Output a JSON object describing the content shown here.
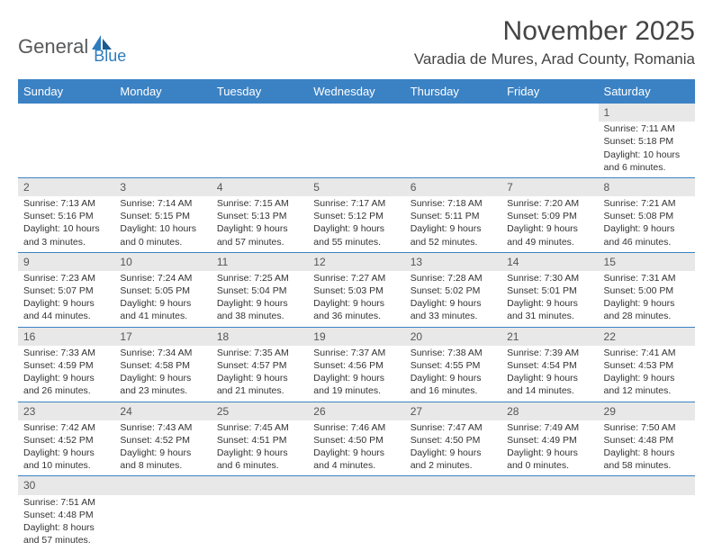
{
  "brand": {
    "text1": "General",
    "text2": "Blue"
  },
  "title": "November 2025",
  "location": "Varadia de Mures, Arad County, Romania",
  "colors": {
    "header_bg": "#3b82c4",
    "header_text": "#ffffff",
    "daynum_bg": "#e8e8e8",
    "border": "#3b82c4",
    "text": "#333333",
    "brand_gray": "#58595b",
    "brand_blue": "#2e7bbd"
  },
  "day_labels": [
    "Sunday",
    "Monday",
    "Tuesday",
    "Wednesday",
    "Thursday",
    "Friday",
    "Saturday"
  ],
  "weeks": [
    [
      null,
      null,
      null,
      null,
      null,
      null,
      {
        "n": "1",
        "sr": "Sunrise: 7:11 AM",
        "ss": "Sunset: 5:18 PM",
        "d1": "Daylight: 10 hours",
        "d2": "and 6 minutes."
      }
    ],
    [
      {
        "n": "2",
        "sr": "Sunrise: 7:13 AM",
        "ss": "Sunset: 5:16 PM",
        "d1": "Daylight: 10 hours",
        "d2": "and 3 minutes."
      },
      {
        "n": "3",
        "sr": "Sunrise: 7:14 AM",
        "ss": "Sunset: 5:15 PM",
        "d1": "Daylight: 10 hours",
        "d2": "and 0 minutes."
      },
      {
        "n": "4",
        "sr": "Sunrise: 7:15 AM",
        "ss": "Sunset: 5:13 PM",
        "d1": "Daylight: 9 hours",
        "d2": "and 57 minutes."
      },
      {
        "n": "5",
        "sr": "Sunrise: 7:17 AM",
        "ss": "Sunset: 5:12 PM",
        "d1": "Daylight: 9 hours",
        "d2": "and 55 minutes."
      },
      {
        "n": "6",
        "sr": "Sunrise: 7:18 AM",
        "ss": "Sunset: 5:11 PM",
        "d1": "Daylight: 9 hours",
        "d2": "and 52 minutes."
      },
      {
        "n": "7",
        "sr": "Sunrise: 7:20 AM",
        "ss": "Sunset: 5:09 PM",
        "d1": "Daylight: 9 hours",
        "d2": "and 49 minutes."
      },
      {
        "n": "8",
        "sr": "Sunrise: 7:21 AM",
        "ss": "Sunset: 5:08 PM",
        "d1": "Daylight: 9 hours",
        "d2": "and 46 minutes."
      }
    ],
    [
      {
        "n": "9",
        "sr": "Sunrise: 7:23 AM",
        "ss": "Sunset: 5:07 PM",
        "d1": "Daylight: 9 hours",
        "d2": "and 44 minutes."
      },
      {
        "n": "10",
        "sr": "Sunrise: 7:24 AM",
        "ss": "Sunset: 5:05 PM",
        "d1": "Daylight: 9 hours",
        "d2": "and 41 minutes."
      },
      {
        "n": "11",
        "sr": "Sunrise: 7:25 AM",
        "ss": "Sunset: 5:04 PM",
        "d1": "Daylight: 9 hours",
        "d2": "and 38 minutes."
      },
      {
        "n": "12",
        "sr": "Sunrise: 7:27 AM",
        "ss": "Sunset: 5:03 PM",
        "d1": "Daylight: 9 hours",
        "d2": "and 36 minutes."
      },
      {
        "n": "13",
        "sr": "Sunrise: 7:28 AM",
        "ss": "Sunset: 5:02 PM",
        "d1": "Daylight: 9 hours",
        "d2": "and 33 minutes."
      },
      {
        "n": "14",
        "sr": "Sunrise: 7:30 AM",
        "ss": "Sunset: 5:01 PM",
        "d1": "Daylight: 9 hours",
        "d2": "and 31 minutes."
      },
      {
        "n": "15",
        "sr": "Sunrise: 7:31 AM",
        "ss": "Sunset: 5:00 PM",
        "d1": "Daylight: 9 hours",
        "d2": "and 28 minutes."
      }
    ],
    [
      {
        "n": "16",
        "sr": "Sunrise: 7:33 AM",
        "ss": "Sunset: 4:59 PM",
        "d1": "Daylight: 9 hours",
        "d2": "and 26 minutes."
      },
      {
        "n": "17",
        "sr": "Sunrise: 7:34 AM",
        "ss": "Sunset: 4:58 PM",
        "d1": "Daylight: 9 hours",
        "d2": "and 23 minutes."
      },
      {
        "n": "18",
        "sr": "Sunrise: 7:35 AM",
        "ss": "Sunset: 4:57 PM",
        "d1": "Daylight: 9 hours",
        "d2": "and 21 minutes."
      },
      {
        "n": "19",
        "sr": "Sunrise: 7:37 AM",
        "ss": "Sunset: 4:56 PM",
        "d1": "Daylight: 9 hours",
        "d2": "and 19 minutes."
      },
      {
        "n": "20",
        "sr": "Sunrise: 7:38 AM",
        "ss": "Sunset: 4:55 PM",
        "d1": "Daylight: 9 hours",
        "d2": "and 16 minutes."
      },
      {
        "n": "21",
        "sr": "Sunrise: 7:39 AM",
        "ss": "Sunset: 4:54 PM",
        "d1": "Daylight: 9 hours",
        "d2": "and 14 minutes."
      },
      {
        "n": "22",
        "sr": "Sunrise: 7:41 AM",
        "ss": "Sunset: 4:53 PM",
        "d1": "Daylight: 9 hours",
        "d2": "and 12 minutes."
      }
    ],
    [
      {
        "n": "23",
        "sr": "Sunrise: 7:42 AM",
        "ss": "Sunset: 4:52 PM",
        "d1": "Daylight: 9 hours",
        "d2": "and 10 minutes."
      },
      {
        "n": "24",
        "sr": "Sunrise: 7:43 AM",
        "ss": "Sunset: 4:52 PM",
        "d1": "Daylight: 9 hours",
        "d2": "and 8 minutes."
      },
      {
        "n": "25",
        "sr": "Sunrise: 7:45 AM",
        "ss": "Sunset: 4:51 PM",
        "d1": "Daylight: 9 hours",
        "d2": "and 6 minutes."
      },
      {
        "n": "26",
        "sr": "Sunrise: 7:46 AM",
        "ss": "Sunset: 4:50 PM",
        "d1": "Daylight: 9 hours",
        "d2": "and 4 minutes."
      },
      {
        "n": "27",
        "sr": "Sunrise: 7:47 AM",
        "ss": "Sunset: 4:50 PM",
        "d1": "Daylight: 9 hours",
        "d2": "and 2 minutes."
      },
      {
        "n": "28",
        "sr": "Sunrise: 7:49 AM",
        "ss": "Sunset: 4:49 PM",
        "d1": "Daylight: 9 hours",
        "d2": "and 0 minutes."
      },
      {
        "n": "29",
        "sr": "Sunrise: 7:50 AM",
        "ss": "Sunset: 4:48 PM",
        "d1": "Daylight: 8 hours",
        "d2": "and 58 minutes."
      }
    ],
    [
      {
        "n": "30",
        "sr": "Sunrise: 7:51 AM",
        "ss": "Sunset: 4:48 PM",
        "d1": "Daylight: 8 hours",
        "d2": "and 57 minutes."
      },
      null,
      null,
      null,
      null,
      null,
      null
    ]
  ]
}
